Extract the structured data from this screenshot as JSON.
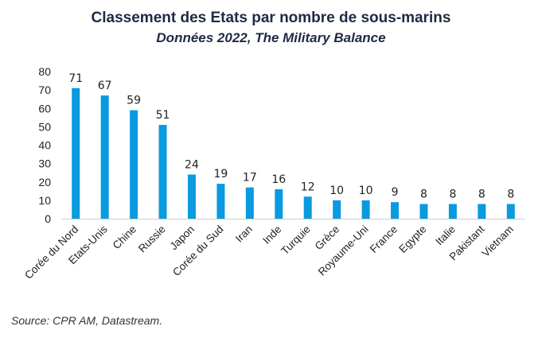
{
  "chart_data": {
    "type": "bar",
    "title": "Classement des Etats par nombre de sous-marins",
    "subtitle": "Données 2022, The Military Balance",
    "categories": [
      "Corée du Nord",
      "Etats-Unis",
      "Chine",
      "Russie",
      "Japon",
      "Corée du Sud",
      "Iran",
      "Inde",
      "Turquie",
      "Grèce",
      "Royaume-Uni",
      "France",
      "Egypte",
      "Italie",
      "Pakistant",
      "Vietnam"
    ],
    "values": [
      71,
      67,
      59,
      51,
      24,
      19,
      17,
      16,
      12,
      10,
      10,
      9,
      8,
      8,
      8,
      8
    ],
    "ylim": [
      0,
      80
    ],
    "yticks": [
      0,
      10,
      20,
      30,
      40,
      50,
      60,
      70,
      80
    ],
    "grid": false,
    "legend": "none",
    "bar_color": "#0a9ae0",
    "source": "Source: CPR AM, Datastream."
  }
}
